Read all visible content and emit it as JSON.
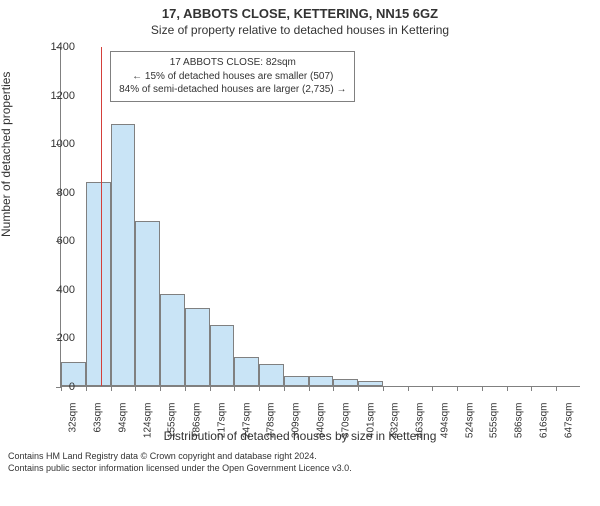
{
  "title_main": "17, ABBOTS CLOSE, KETTERING, NN15 6GZ",
  "title_sub": "Size of property relative to detached houses in Kettering",
  "ylabel": "Number of detached properties",
  "xlabel": "Distribution of detached houses by size in Kettering",
  "chart": {
    "type": "histogram",
    "bar_fill": "#c9e4f6",
    "bar_border": "#808080",
    "marker_color": "#d43f3a",
    "background": "#ffffff",
    "ylim": [
      0,
      1400
    ],
    "ytick_step": 200,
    "bar_values": [
      100,
      840,
      1080,
      680,
      380,
      320,
      250,
      120,
      90,
      40,
      40,
      30,
      20,
      0,
      0,
      0,
      0,
      0,
      0,
      0,
      0
    ],
    "xtick_labels": [
      "32sqm",
      "63sqm",
      "94sqm",
      "124sqm",
      "155sqm",
      "186sqm",
      "217sqm",
      "247sqm",
      "278sqm",
      "309sqm",
      "340sqm",
      "370sqm",
      "401sqm",
      "432sqm",
      "463sqm",
      "494sqm",
      "524sqm",
      "555sqm",
      "586sqm",
      "616sqm",
      "647sqm"
    ],
    "marker_bar_index": 1,
    "marker_fraction_in_bar": 0.62
  },
  "legend": {
    "line1": "17 ABBOTS CLOSE: 82sqm",
    "line2": "← 15% of detached houses are smaller (507)",
    "line3": "84% of semi-detached houses are larger (2,735) →"
  },
  "footer": {
    "line1": "Contains HM Land Registry data © Crown copyright and database right 2024.",
    "line2": "Contains public sector information licensed under the Open Government Licence v3.0."
  }
}
